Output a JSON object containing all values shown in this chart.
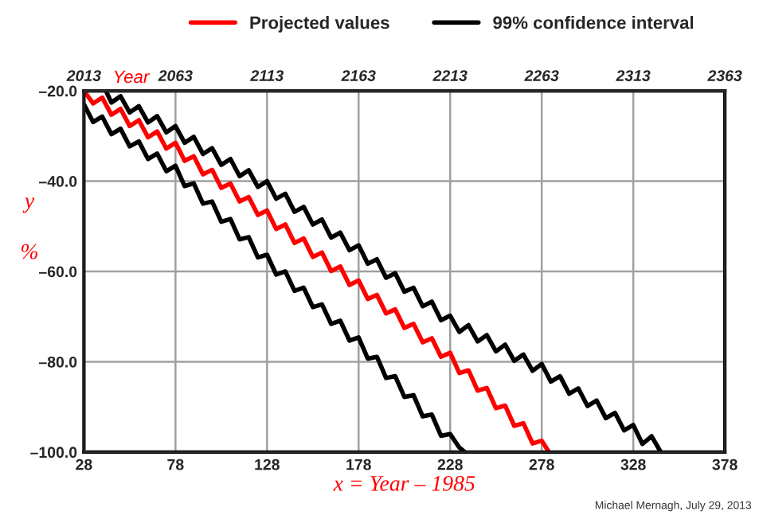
{
  "chart_data": {
    "type": "line",
    "xlabel": "x = Year – 1985",
    "ylabel": "y\n%",
    "x2label": "Year",
    "annotations": [
      "Michael Mernagh, July 29, 2013"
    ],
    "xlim": [
      28,
      378
    ],
    "xticks": [
      28,
      78,
      128,
      178,
      228,
      278,
      328,
      378
    ],
    "x2lim": [
      2013,
      2363
    ],
    "x2ticks": [
      2013,
      2063,
      2113,
      2163,
      2213,
      2263,
      2313,
      2363
    ],
    "ylim": [
      -100,
      -20
    ],
    "yticks": [
      {
        "value": -100,
        "label": "–100.0"
      },
      {
        "value": -80,
        "label": "–80.0"
      },
      {
        "value": -60,
        "label": "–60.0"
      },
      {
        "value": -40,
        "label": "–40.0"
      },
      {
        "value": -20,
        "label": "–20.0"
      }
    ],
    "grid": true,
    "legend": "top",
    "marker": "none",
    "line_style": "solid",
    "series": [
      {
        "name": "Projected values",
        "color": "#ff0000",
        "x": [
          28,
          33,
          38,
          43,
          48,
          53,
          58,
          63,
          68,
          73,
          78,
          83,
          88,
          93,
          98,
          103,
          108,
          113,
          118,
          123,
          128,
          133,
          138,
          143,
          148,
          153,
          158,
          163,
          168,
          173,
          178,
          183,
          188,
          193,
          198,
          203,
          208,
          213,
          218,
          223,
          228,
          233,
          238,
          243,
          248,
          253,
          258,
          263,
          268,
          273,
          278,
          282
        ],
        "values": [
          -20,
          -22.8,
          -21.5,
          -25.3,
          -24,
          -27.8,
          -26.5,
          -30.3,
          -29,
          -32.8,
          -31.5,
          -35.5,
          -34.5,
          -38.5,
          -37.5,
          -41.5,
          -40.5,
          -44.5,
          -43.5,
          -47.5,
          -46.5,
          -50.6,
          -49.6,
          -53.7,
          -52.7,
          -56.8,
          -55.8,
          -59.9,
          -58.9,
          -63.0,
          -62,
          -66.1,
          -65.2,
          -69.3,
          -68.4,
          -72.5,
          -71.6,
          -75.7,
          -74.8,
          -78.9,
          -78,
          -82.5,
          -81.9,
          -86.4,
          -85.8,
          -90.3,
          -89.7,
          -94.2,
          -93.6,
          -98.1,
          -97.5,
          -100
        ]
      },
      {
        "name": "99% confidence interval",
        "color": "#000000",
        "x": [
          40,
          43,
          48,
          53,
          58,
          63,
          68,
          73,
          78,
          83,
          88,
          93,
          98,
          103,
          108,
          113,
          118,
          123,
          128,
          133,
          138,
          143,
          148,
          153,
          158,
          163,
          168,
          173,
          178,
          183,
          188,
          193,
          198,
          203,
          208,
          213,
          218,
          223,
          228,
          233,
          238,
          243,
          248,
          253,
          258,
          263,
          268,
          273,
          278,
          283,
          288,
          293,
          298,
          303,
          308,
          313,
          318,
          323,
          328,
          333,
          338,
          343
        ],
        "values": [
          -20,
          -22.6,
          -21.2,
          -24.8,
          -23.4,
          -27.0,
          -25.6,
          -29.2,
          -27.8,
          -31.5,
          -30.2,
          -34.0,
          -32.7,
          -36.4,
          -35.1,
          -38.9,
          -37.6,
          -41.3,
          -40,
          -43.9,
          -42.8,
          -46.8,
          -45.7,
          -49.6,
          -48.5,
          -52.5,
          -51.4,
          -55.3,
          -54.2,
          -58.3,
          -57.3,
          -61.4,
          -60.4,
          -64.5,
          -63.6,
          -67.7,
          -66.7,
          -70.8,
          -69.8,
          -73.4,
          -71.9,
          -75.5,
          -74.1,
          -77.7,
          -76.2,
          -79.8,
          -78.4,
          -82,
          -80.5,
          -84.4,
          -83.2,
          -87.1,
          -85.9,
          -89.8,
          -88.6,
          -92.5,
          -91.3,
          -95.2,
          -94,
          -98.2,
          -96.5,
          -100
        ]
      },
      {
        "color": "#000000",
        "x": [
          28,
          33,
          38,
          43,
          48,
          53,
          58,
          63,
          68,
          73,
          78,
          83,
          88,
          93,
          98,
          103,
          108,
          113,
          118,
          123,
          128,
          133,
          138,
          143,
          148,
          153,
          158,
          163,
          168,
          173,
          178,
          183,
          188,
          193,
          198,
          203,
          208,
          213,
          218,
          223,
          228,
          233,
          236
        ],
        "values": [
          -23,
          -26.9,
          -25.7,
          -29.6,
          -28.4,
          -32.3,
          -31.2,
          -35.1,
          -33.9,
          -37.8,
          -36.6,
          -41.1,
          -40.5,
          -45.0,
          -44.5,
          -49.0,
          -48.4,
          -52.9,
          -52.4,
          -56.9,
          -56.3,
          -60.7,
          -60,
          -64.3,
          -63.6,
          -67.9,
          -67.3,
          -71.6,
          -70.9,
          -75.3,
          -74.6,
          -79.3,
          -78.9,
          -83.6,
          -83.2,
          -87.8,
          -87.4,
          -92.1,
          -91.7,
          -96.4,
          -96,
          -99,
          -100
        ]
      }
    ]
  }
}
